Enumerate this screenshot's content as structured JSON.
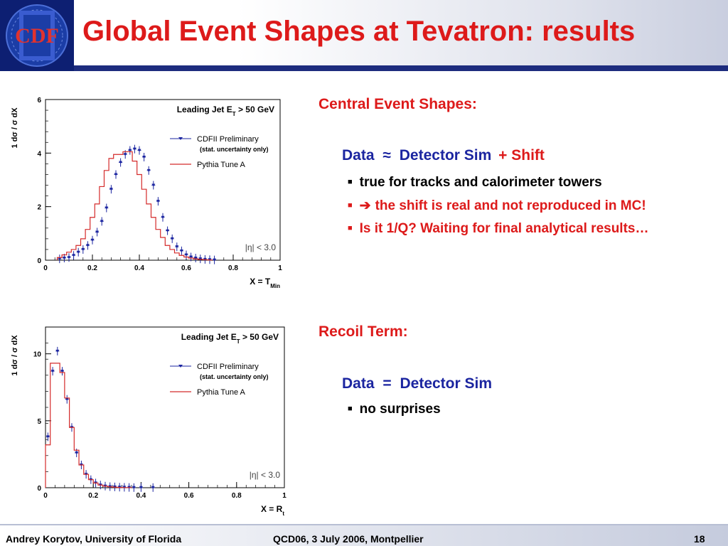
{
  "header": {
    "title": "Global Event Shapes at Tevatron: results",
    "logo_text": "CDF",
    "colors": {
      "title": "#dd1a1a",
      "bar": "#1d2c7e",
      "logo_bg": "#0d1f72"
    }
  },
  "right": {
    "central": {
      "heading": "Central Event Shapes:",
      "eq_data": "Data",
      "eq_op": "≈",
      "eq_sim": "Detector Sim",
      "eq_shift": "+ Shift",
      "bullets": [
        "true for tracks and calorimeter towers",
        "the shift is real and not reproduced in MC!",
        "Is it 1/Q? Waiting for final analytical results…"
      ],
      "arrow_icon": "➔"
    },
    "recoil": {
      "heading": "Recoil Term:",
      "eq_data": "Data",
      "eq_op": "=",
      "eq_sim": "Detector Sim",
      "bullets": [
        "no surprises"
      ]
    }
  },
  "footer": {
    "author": "Andrey Korytov, University of Florida",
    "event": "QCD06, 3 July 2006, Montpellier",
    "page": "18"
  },
  "chart_data": [
    {
      "type": "line",
      "annotation": "Leading Jet E_T > 50 GeV",
      "annotation_main": "Leading Jet E",
      "annotation_sub": "T",
      "annotation_tail": " > 50 GeV",
      "eta_cut": "|η| < 3.0",
      "ylabel": "1 dσ / σ dX",
      "xlabel_main": "X = T",
      "xlabel_sub": "Min",
      "xlim": [
        0,
        1
      ],
      "ylim": [
        0,
        6
      ],
      "xticks": [
        "0",
        "0.2",
        "0.4",
        "0.6",
        "0.8",
        "1"
      ],
      "yticks": [
        "0",
        "2",
        "4",
        "6"
      ],
      "legend": [
        {
          "label": "CDFII Preliminary",
          "note": "(stat. uncertainty only)"
        },
        {
          "label": "Pythia Tune A"
        }
      ],
      "series": [
        {
          "name": "CDFII Preliminary",
          "style": "points",
          "color": "#1b25a0",
          "x": [
            0.06,
            0.08,
            0.1,
            0.12,
            0.14,
            0.16,
            0.18,
            0.2,
            0.22,
            0.24,
            0.26,
            0.28,
            0.3,
            0.32,
            0.34,
            0.36,
            0.38,
            0.4,
            0.42,
            0.44,
            0.46,
            0.48,
            0.5,
            0.52,
            0.54,
            0.56,
            0.58,
            0.6,
            0.62,
            0.64,
            0.66,
            0.68,
            0.7,
            0.72
          ],
          "y": [
            0.05,
            0.08,
            0.1,
            0.18,
            0.3,
            0.4,
            0.55,
            0.75,
            1.05,
            1.45,
            1.95,
            2.65,
            3.2,
            3.65,
            3.95,
            4.1,
            4.15,
            4.1,
            3.85,
            3.35,
            2.8,
            2.2,
            1.6,
            1.1,
            0.8,
            0.5,
            0.35,
            0.2,
            0.12,
            0.08,
            0.05,
            0.03,
            0.02,
            0.01
          ]
        },
        {
          "name": "Pythia Tune A",
          "style": "step",
          "color": "#d42a2a",
          "edges": [
            0.05,
            0.07,
            0.09,
            0.11,
            0.13,
            0.15,
            0.17,
            0.19,
            0.21,
            0.23,
            0.25,
            0.27,
            0.29,
            0.31,
            0.33,
            0.35,
            0.37,
            0.39,
            0.41,
            0.43,
            0.45,
            0.47,
            0.49,
            0.51,
            0.53,
            0.55,
            0.57,
            0.59,
            0.61,
            0.63,
            0.65,
            0.67,
            0.69,
            0.71
          ],
          "y": [
            0.1,
            0.2,
            0.3,
            0.4,
            0.55,
            0.8,
            1.15,
            1.6,
            2.1,
            2.75,
            3.35,
            3.8,
            3.95,
            3.95,
            4.05,
            4.05,
            3.7,
            3.2,
            2.65,
            2.1,
            1.6,
            1.15,
            0.85,
            0.55,
            0.4,
            0.27,
            0.18,
            0.12,
            0.08,
            0.05,
            0.03,
            0.02,
            0.01
          ]
        }
      ]
    },
    {
      "type": "line",
      "annotation": "Leading Jet E_T > 50 GeV",
      "annotation_main": "Leading Jet E",
      "annotation_sub": "T",
      "annotation_tail": " > 50 GeV",
      "eta_cut": "|η| < 3.0",
      "ylabel": "1 dσ / σ dX",
      "xlabel_main": "X = R",
      "xlabel_sub": "t",
      "xlim": [
        0,
        1
      ],
      "ylim": [
        0,
        12
      ],
      "xticks": [
        "0",
        "0.2",
        "0.4",
        "0.6",
        "0.8",
        "1"
      ],
      "yticks": [
        "0",
        "5",
        "10"
      ],
      "legend": [
        {
          "label": "CDFII Preliminary",
          "note": "(stat. uncertainty only)"
        },
        {
          "label": "Pythia Tune A"
        }
      ],
      "series": [
        {
          "name": "CDFII Preliminary",
          "style": "points",
          "color": "#1b25a0",
          "x": [
            0.01,
            0.03,
            0.05,
            0.07,
            0.09,
            0.11,
            0.13,
            0.15,
            0.17,
            0.19,
            0.21,
            0.23,
            0.25,
            0.27,
            0.29,
            0.31,
            0.33,
            0.35,
            0.37,
            0.4,
            0.45
          ],
          "y": [
            3.8,
            8.7,
            10.2,
            8.7,
            6.6,
            4.5,
            2.6,
            1.7,
            1.0,
            0.6,
            0.35,
            0.2,
            0.12,
            0.08,
            0.06,
            0.04,
            0.03,
            0.02,
            0.01,
            0.01,
            0.01
          ]
        },
        {
          "name": "Pythia Tune A",
          "style": "step",
          "color": "#d42a2a",
          "edges": [
            0.0,
            0.02,
            0.04,
            0.06,
            0.08,
            0.1,
            0.12,
            0.14,
            0.16,
            0.18,
            0.2,
            0.22,
            0.24,
            0.26,
            0.28,
            0.3,
            0.32,
            0.34,
            0.36
          ],
          "y": [
            3.2,
            9.3,
            9.3,
            8.6,
            6.7,
            4.5,
            2.8,
            1.7,
            1.0,
            0.6,
            0.35,
            0.2,
            0.12,
            0.07,
            0.04,
            0.02,
            0.01,
            0.01
          ]
        }
      ]
    }
  ]
}
